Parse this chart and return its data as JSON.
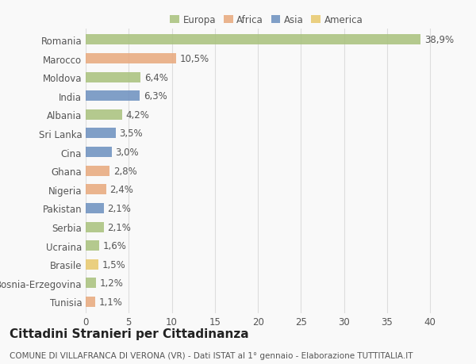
{
  "countries": [
    "Romania",
    "Marocco",
    "Moldova",
    "India",
    "Albania",
    "Sri Lanka",
    "Cina",
    "Ghana",
    "Nigeria",
    "Pakistan",
    "Serbia",
    "Ucraina",
    "Brasile",
    "Bosnia-Erzegovina",
    "Tunisia"
  ],
  "values": [
    38.9,
    10.5,
    6.4,
    6.3,
    4.2,
    3.5,
    3.0,
    2.8,
    2.4,
    2.1,
    2.1,
    1.6,
    1.5,
    1.2,
    1.1
  ],
  "labels": [
    "38,9%",
    "10,5%",
    "6,4%",
    "6,3%",
    "4,2%",
    "3,5%",
    "3,0%",
    "2,8%",
    "2,4%",
    "2,1%",
    "2,1%",
    "1,6%",
    "1,5%",
    "1,2%",
    "1,1%"
  ],
  "continents": [
    "Europa",
    "Africa",
    "Europa",
    "Asia",
    "Europa",
    "Asia",
    "Asia",
    "Africa",
    "Africa",
    "Asia",
    "Europa",
    "Europa",
    "America",
    "Europa",
    "Africa"
  ],
  "continent_colors": {
    "Europa": "#a8c17c",
    "Africa": "#e8a87c",
    "Asia": "#6b8fbf",
    "America": "#e8c86b"
  },
  "legend_items": [
    "Europa",
    "Africa",
    "Asia",
    "America"
  ],
  "legend_colors": [
    "#a8c17c",
    "#e8a87c",
    "#6b8fbf",
    "#e8c86b"
  ],
  "xlim": [
    0,
    42
  ],
  "xticks": [
    0,
    5,
    10,
    15,
    20,
    25,
    30,
    35,
    40
  ],
  "title": "Cittadini Stranieri per Cittadinanza",
  "subtitle": "COMUNE DI VILLAFRANCA DI VERONA (VR) - Dati ISTAT al 1° gennaio - Elaborazione TUTTITALIA.IT",
  "background_color": "#f9f9f9",
  "grid_color": "#dddddd",
  "bar_height": 0.55,
  "label_fontsize": 8.5,
  "tick_fontsize": 8.5,
  "title_fontsize": 11,
  "subtitle_fontsize": 7.5,
  "text_color": "#555555",
  "title_color": "#222222"
}
